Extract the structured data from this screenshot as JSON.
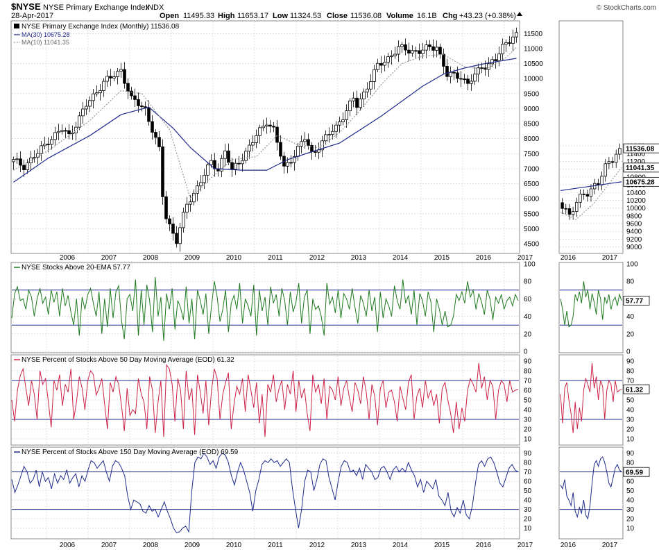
{
  "header": {
    "symbol": "$NYSE",
    "name": "NYSE Primary Exchange Index",
    "exchange": "INDX",
    "date": "28-Apr-2017",
    "open_label": "Open",
    "open": "11495.33",
    "high_label": "High",
    "high": "11653.17",
    "low_label": "Low",
    "low": "11324.53",
    "close_label": "Close",
    "close": "11536.08",
    "volume_label": "Volume",
    "volume": "16.1B",
    "chg_label": "Chg",
    "chg": "+43.23 (+0.38%)",
    "watermark": "© StockCharts.com"
  },
  "colors": {
    "ma30": "#1f2a8c",
    "ma10": "#999999",
    "ema20": "#1e7a1e",
    "pct50": "#cc2244",
    "pct150": "#1f2a8c",
    "grid": "#cfcfcf",
    "hline": "#1f2a8c"
  },
  "chart_data": [
    {
      "type": "candlestick",
      "title": "NYSE Primary Exchange Index (Monthly) 11536.08",
      "interval": "monthly",
      "ylim": [
        4200,
        11900
      ],
      "yticks": [
        4500,
        5000,
        5500,
        6000,
        6500,
        7000,
        7500,
        8000,
        8500,
        9000,
        9500,
        10000,
        10500,
        11000,
        11500
      ],
      "x_ticks": [
        "2006",
        "2007",
        "2008",
        "2009",
        "2010",
        "2011",
        "2012",
        "2013",
        "2014",
        "2015",
        "2016",
        "2017"
      ],
      "start": "2005-03",
      "legend": [
        {
          "name": "MA(30) 10675.28",
          "line": "solid"
        },
        {
          "name": "MA(10) 11041.35",
          "line": "dotted"
        }
      ],
      "last_close_label": "11536.08",
      "anchors_close": [
        [
          "2005-03",
          7250
        ],
        [
          "2005-06",
          7100
        ],
        [
          "2005-10",
          7500
        ],
        [
          "2006-01",
          7950
        ],
        [
          "2006-05",
          8300
        ],
        [
          "2006-07",
          8100
        ],
        [
          "2006-12",
          9100
        ],
        [
          "2007-05",
          9900
        ],
        [
          "2007-07",
          10000
        ],
        [
          "2007-10",
          10300
        ],
        [
          "2008-01",
          9300
        ],
        [
          "2008-05",
          9000
        ],
        [
          "2008-07",
          8300
        ],
        [
          "2008-09",
          7600
        ],
        [
          "2008-10",
          6100
        ],
        [
          "2008-11",
          5400
        ],
        [
          "2009-02",
          4600
        ],
        [
          "2009-05",
          5800
        ],
        [
          "2009-12",
          7200
        ],
        [
          "2010-02",
          7000
        ],
        [
          "2010-04",
          7600
        ],
        [
          "2010-06",
          6900
        ],
        [
          "2010-12",
          7900
        ],
        [
          "2011-04",
          8600
        ],
        [
          "2011-06",
          8300
        ],
        [
          "2011-09",
          7000
        ],
        [
          "2011-12",
          7500
        ],
        [
          "2012-03",
          8000
        ],
        [
          "2012-05",
          7500
        ],
        [
          "2012-12",
          8400
        ],
        [
          "2013-05",
          9300
        ],
        [
          "2013-06",
          9100
        ],
        [
          "2013-12",
          10400
        ],
        [
          "2014-06",
          11000
        ],
        [
          "2014-12",
          10900
        ],
        [
          "2015-05",
          11100
        ],
        [
          "2015-08",
          10100
        ],
        [
          "2015-12",
          10100
        ],
        [
          "2016-02",
          9800
        ],
        [
          "2016-06",
          10400
        ],
        [
          "2016-10",
          10600
        ],
        [
          "2016-12",
          11050
        ],
        [
          "2017-03",
          11450
        ],
        [
          "2017-04",
          11536
        ]
      ],
      "series": [
        {
          "name": "MA(30)",
          "points": [
            [
              "2005-03",
              6550
            ],
            [
              "2006-01",
              7350
            ],
            [
              "2007-01",
              8100
            ],
            [
              "2007-10",
              8800
            ],
            [
              "2008-06",
              9050
            ],
            [
              "2009-01",
              8350
            ],
            [
              "2009-06",
              7700
            ],
            [
              "2010-01",
              7000
            ],
            [
              "2010-09",
              6950
            ],
            [
              "2011-04",
              6950
            ],
            [
              "2011-10",
              7300
            ],
            [
              "2012-06",
              7600
            ],
            [
              "2013-01",
              7850
            ],
            [
              "2013-07",
              8300
            ],
            [
              "2014-01",
              8750
            ],
            [
              "2014-07",
              9250
            ],
            [
              "2015-01",
              9750
            ],
            [
              "2015-07",
              10150
            ],
            [
              "2016-01",
              10350
            ],
            [
              "2016-07",
              10500
            ],
            [
              "2017-04",
              10675
            ]
          ]
        },
        {
          "name": "MA(10)",
          "points": [
            [
              "2005-03",
              6950
            ],
            [
              "2006-01",
              7600
            ],
            [
              "2007-01",
              8600
            ],
            [
              "2007-10",
              9600
            ],
            [
              "2008-04",
              9500
            ],
            [
              "2008-12",
              8300
            ],
            [
              "2009-06",
              6000
            ],
            [
              "2009-12",
              6700
            ],
            [
              "2010-06",
              7300
            ],
            [
              "2011-01",
              7400
            ],
            [
              "2011-07",
              8100
            ],
            [
              "2012-01",
              7800
            ],
            [
              "2012-07",
              7700
            ],
            [
              "2013-01",
              8200
            ],
            [
              "2013-07",
              8950
            ],
            [
              "2014-01",
              9800
            ],
            [
              "2014-07",
              10500
            ],
            [
              "2015-01",
              10750
            ],
            [
              "2015-07",
              10800
            ],
            [
              "2016-01",
              10400
            ],
            [
              "2016-07",
              10300
            ],
            [
              "2017-01",
              10700
            ],
            [
              "2017-04",
              11041
            ]
          ]
        }
      ]
    },
    {
      "type": "line",
      "title": "NYSE Stocks Above 20-EMA 57.77",
      "ylim": [
        0,
        100
      ],
      "yticks": [
        0,
        20,
        40,
        60,
        80,
        100
      ],
      "hlines": [
        30,
        70
      ],
      "last_label": "57.77",
      "series": [
        {
          "name": "NYSE Stocks Above 20-EMA",
          "values": [
            38,
            66,
            74,
            58,
            60,
            48,
            70,
            62,
            40,
            60,
            72,
            55,
            62,
            42,
            70,
            56,
            68,
            40,
            72,
            52,
            64,
            45,
            30,
            60,
            18,
            62,
            48,
            65,
            72,
            55,
            40,
            68,
            20,
            60,
            28,
            72,
            38,
            68,
            75,
            35,
            14,
            60,
            65,
            46,
            82,
            18,
            70,
            30,
            76,
            58,
            22,
            85,
            40,
            62,
            12,
            66,
            48,
            72,
            25,
            58,
            50,
            36,
            74,
            32,
            60,
            14,
            70,
            58,
            42,
            66,
            20,
            52,
            80,
            62,
            34,
            48,
            70,
            22,
            55,
            64,
            48,
            78,
            32,
            60,
            52,
            40,
            76,
            18,
            70,
            46,
            62,
            30,
            74,
            55,
            65,
            40,
            72,
            58,
            30,
            68,
            45,
            56,
            78,
            32,
            62,
            70,
            20,
            60,
            48,
            52,
            40,
            18,
            78,
            54,
            62,
            44,
            70,
            38,
            66,
            60,
            48,
            72,
            50,
            32,
            64,
            55,
            40,
            70,
            46,
            62,
            22,
            68,
            38,
            60,
            52,
            40,
            75,
            58,
            48,
            82,
            55,
            64,
            42,
            70,
            30,
            66,
            58,
            40,
            68,
            56,
            22,
            60,
            48,
            30,
            46,
            28,
            30,
            40,
            65,
            58,
            68,
            55,
            80,
            62,
            70,
            48,
            66,
            56,
            42,
            70,
            60,
            36,
            62,
            55,
            65,
            48,
            58,
            62,
            52,
            65,
            58
          ]
        }
      ]
    },
    {
      "type": "line",
      "title": "NYSE Percent of Stocks Above 50 Day Moving Average (EOD) 61.32",
      "ylim": [
        5,
        95
      ],
      "yticks": [
        10,
        20,
        30,
        40,
        50,
        60,
        70,
        80,
        90
      ],
      "hlines": [
        30,
        70
      ],
      "last_label": "61.32",
      "series": [
        {
          "name": "NYSE Percent of Stocks Above 50 Day Moving Average (EOD)",
          "values": [
            50,
            28,
            60,
            75,
            82,
            62,
            44,
            70,
            56,
            30,
            80,
            66,
            72,
            48,
            22,
            70,
            60,
            76,
            44,
            66,
            58,
            82,
            30,
            48,
            74,
            62,
            40,
            70,
            80,
            76,
            55,
            62,
            72,
            46,
            20,
            68,
            58,
            74,
            66,
            44,
            18,
            62,
            34,
            40,
            36,
            72,
            56,
            48,
            20,
            74,
            60,
            16,
            48,
            70,
            12,
            86,
            82,
            66,
            28,
            72,
            60,
            20,
            80,
            50,
            62,
            14,
            76,
            58,
            36,
            70,
            24,
            60,
            82,
            72,
            30,
            56,
            68,
            78,
            20,
            46,
            64,
            56,
            72,
            38,
            76,
            60,
            42,
            68,
            26,
            56,
            12,
            66,
            58,
            76,
            48,
            62,
            70,
            40,
            66,
            56,
            80,
            38,
            70,
            52,
            62,
            36,
            18,
            76,
            58,
            66,
            46,
            72,
            30,
            64,
            60,
            50,
            74,
            44,
            62,
            70,
            52,
            38,
            68,
            60,
            46,
            74,
            58,
            30,
            66,
            54,
            24,
            62,
            70,
            42,
            58,
            60,
            48,
            28,
            64,
            52,
            40,
            68,
            76,
            30,
            54,
            62,
            42,
            70,
            52,
            60,
            44,
            56,
            26,
            62,
            68,
            50,
            36,
            16,
            48,
            20,
            42,
            28,
            60,
            72,
            66,
            58,
            88,
            62,
            74,
            50,
            70,
            64,
            30,
            60,
            70,
            66,
            48,
            70,
            58,
            60,
            61
          ]
        }
      ]
    },
    {
      "type": "line",
      "title": "NYSE Percent of Stocks Above 150 Day Moving Average (EOD) 69.59",
      "ylim": [
        0,
        95
      ],
      "yticks": [
        10,
        20,
        30,
        40,
        50,
        60,
        70,
        80,
        90
      ],
      "hlines": [
        30,
        70
      ],
      "last_label": "69.59",
      "series": [
        {
          "name": "NYSE Percent of Stocks Above 150 Day Moving Average (EOD)",
          "values": [
            62,
            48,
            56,
            66,
            76,
            70,
            58,
            62,
            72,
            54,
            70,
            60,
            64,
            52,
            68,
            58,
            66,
            62,
            72,
            58,
            64,
            68,
            54,
            66,
            60,
            72,
            82,
            80,
            74,
            78,
            82,
            70,
            60,
            76,
            82,
            80,
            74,
            66,
            44,
            30,
            40,
            38,
            36,
            28,
            26,
            34,
            28,
            30,
            22,
            30,
            38,
            28,
            20,
            10,
            5,
            6,
            10,
            12,
            6,
            50,
            80,
            86,
            84,
            90,
            86,
            78,
            82,
            74,
            86,
            90,
            88,
            80,
            66,
            56,
            70,
            80,
            72,
            60,
            48,
            28,
            50,
            62,
            78,
            82,
            80,
            84,
            80,
            82,
            76,
            80,
            84,
            80,
            52,
            30,
            10,
            30,
            60,
            72,
            70,
            50,
            62,
            78,
            84,
            82,
            64,
            52,
            40,
            60,
            76,
            82,
            80,
            70,
            72,
            66,
            74,
            62,
            78,
            74,
            70,
            62,
            64,
            74,
            76,
            70,
            62,
            72,
            76,
            70,
            74,
            70,
            80,
            72,
            66,
            54,
            62,
            48,
            60,
            56,
            52,
            62,
            44,
            40,
            34,
            48,
            28,
            22,
            32,
            26,
            40,
            24,
            20,
            34,
            58,
            78,
            82,
            76,
            84,
            86,
            80,
            70,
            58,
            54,
            64,
            74,
            78,
            72,
            70
          ]
        }
      ]
    },
    {
      "type": "candlestick",
      "title": "",
      "interval": "weekly",
      "ylim": [
        8850,
        14800
      ],
      "yticks": [
        9000,
        9200,
        9400,
        9600,
        9800,
        10000,
        10200,
        10400,
        10600,
        10800,
        11000,
        11200,
        11400,
        11600
      ],
      "x_ticks": [
        "2016",
        "2017"
      ],
      "labels": [
        "11536.08",
        "11041.35",
        "10675.28"
      ]
    }
  ]
}
